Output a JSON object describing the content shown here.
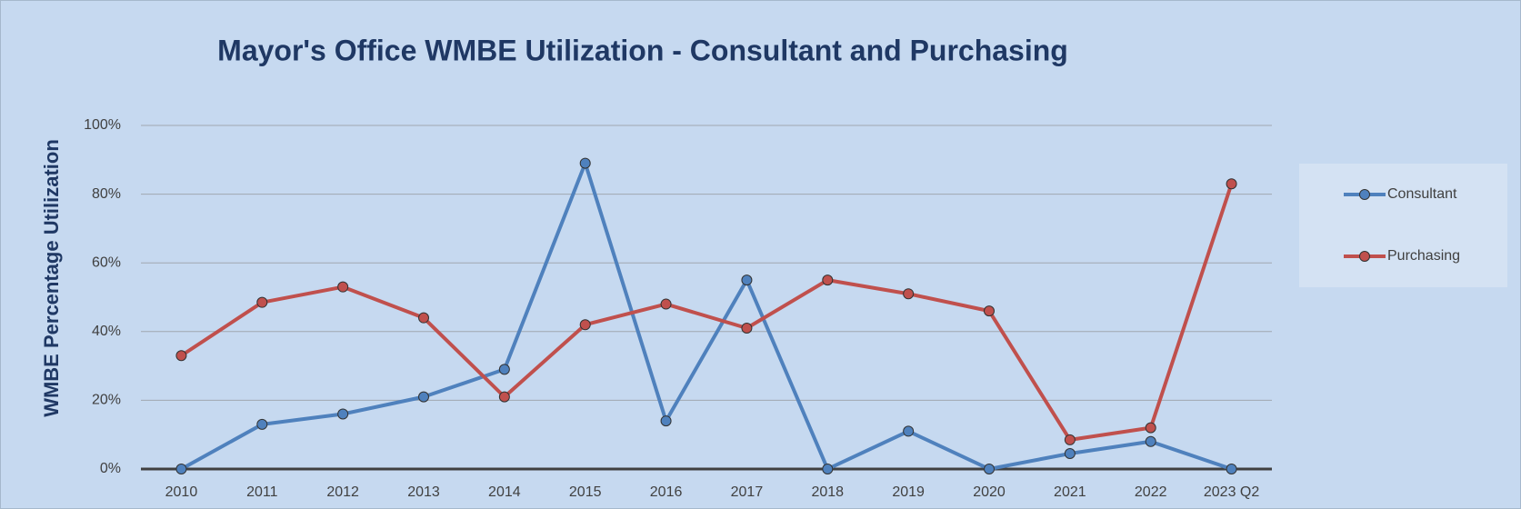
{
  "chart_data": {
    "type": "line",
    "title": "Mayor's Office WMBE Utilization - Consultant and Purchasing",
    "y_label": "WMBE Percentage Utilization",
    "categories": [
      "2010",
      "2011",
      "2012",
      "2013",
      "2014",
      "2015",
      "2016",
      "2017",
      "2018",
      "2019",
      "2020",
      "2021",
      "2022",
      "2023 Q2"
    ],
    "series": [
      {
        "name": "Consultant",
        "color": "#4f81bd",
        "values": [
          0,
          13,
          16,
          21,
          29,
          89,
          14,
          55,
          0,
          11,
          0,
          4.5,
          8,
          0
        ]
      },
      {
        "name": "Purchasing",
        "color": "#c0504d",
        "values": [
          33,
          48.5,
          53,
          44,
          21,
          42,
          48,
          41,
          55,
          51,
          46,
          8.5,
          12,
          83
        ]
      }
    ],
    "ylim": [
      0,
      100
    ],
    "yticks": [
      {
        "value": 0,
        "label": "0%"
      },
      {
        "value": 20,
        "label": "20%"
      },
      {
        "value": 40,
        "label": "40%"
      },
      {
        "value": 60,
        "label": "60%"
      },
      {
        "value": 80,
        "label": "80%"
      },
      {
        "value": 100,
        "label": "100%"
      }
    ],
    "grid": true,
    "legend": "right"
  }
}
